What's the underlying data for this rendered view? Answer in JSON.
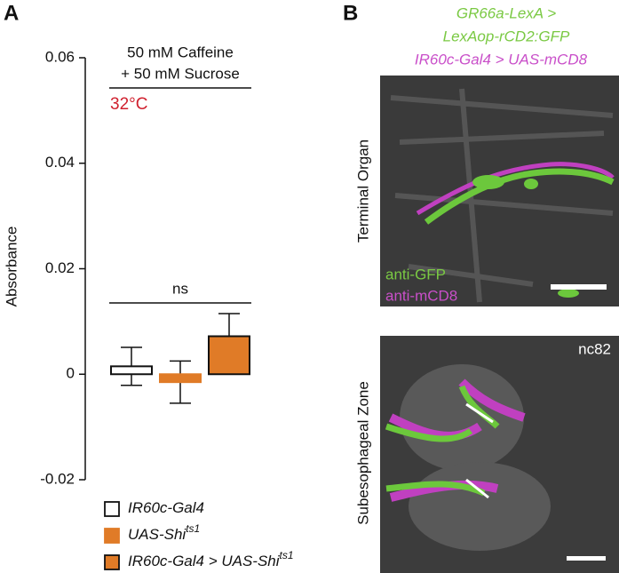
{
  "panels": [
    "A",
    "B"
  ],
  "chart_data": {
    "type": "bar",
    "annotations": [
      "50 mM Caffeine",
      "+ 50 mM Sucrose"
    ],
    "condition": "32°C",
    "significance": "ns",
    "ylabel": "Absorbance",
    "ylim": [
      -0.02,
      0.06
    ],
    "yticks": [
      -0.02,
      0,
      0.02,
      0.04,
      0.06
    ],
    "series": [
      {
        "name": "IR60c-Gal4",
        "color": "#ffffff",
        "values": [
          0.0015
        ],
        "errors": [
          0.0036
        ]
      },
      {
        "name": "UAS-Shi",
        "superscript": "ts1",
        "color": "#e07b27",
        "values": [
          -0.0015
        ],
        "errors": [
          0.004
        ]
      },
      {
        "name": "IR60c-Gal4 > UAS-Shi",
        "superscript": "ts1",
        "color": "#e07b27",
        "values": [
          0.0072
        ],
        "errors": [
          0.0043
        ]
      }
    ]
  },
  "panel_b": {
    "genotype": [
      "GR66a-LexA >",
      "LexAop-rCD2:GFP",
      "IR60c-Gal4 > UAS-mCD8"
    ],
    "top_label": "Terminal Organ",
    "stains": [
      "anti-GFP",
      "anti-mCD8"
    ],
    "bottom_label": "Subesophageal Zone",
    "bottom_stain": "nc82"
  }
}
